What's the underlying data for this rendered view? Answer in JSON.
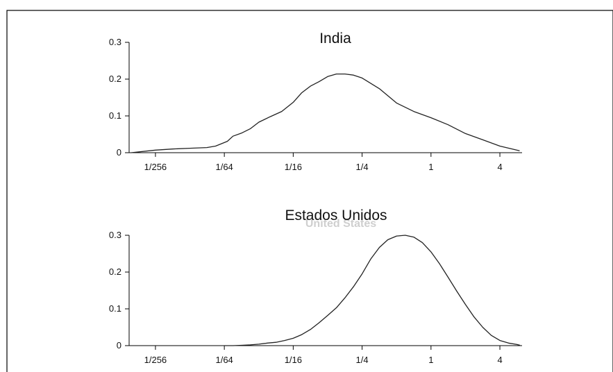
{
  "chart_data": [
    {
      "type": "line",
      "title": "India",
      "xscale": "log2",
      "x_ticks": [
        {
          "value": 0.00390625,
          "label": "1/256"
        },
        {
          "value": 0.015625,
          "label": "1/64"
        },
        {
          "value": 0.0625,
          "label": "1/16"
        },
        {
          "value": 0.25,
          "label": "1/4"
        },
        {
          "value": 1,
          "label": "1"
        },
        {
          "value": 4,
          "label": "4"
        }
      ],
      "y_ticks": [
        {
          "value": 0,
          "label": "0"
        },
        {
          "value": 0.1,
          "label": "0.1"
        },
        {
          "value": 0.2,
          "label": "0.2"
        },
        {
          "value": 0.3,
          "label": "0.3"
        }
      ],
      "xlim": [
        0.0023,
        6.25
      ],
      "ylim": [
        0,
        0.3
      ],
      "grid": false,
      "series": [
        {
          "x": [
            0.0024,
            0.0039,
            0.0055,
            0.0078,
            0.011,
            0.0131,
            0.0166,
            0.0186,
            0.022,
            0.0263,
            0.0313,
            0.0394,
            0.0496,
            0.0625,
            0.0743,
            0.0884,
            0.105,
            0.125,
            0.149,
            0.177,
            0.21,
            0.25,
            0.354,
            0.5,
            0.707,
            1,
            1.41,
            2,
            2.83,
            4,
            5.95
          ],
          "y": [
            0,
            0.007,
            0.01,
            0.012,
            0.014,
            0.018,
            0.031,
            0.045,
            0.053,
            0.065,
            0.083,
            0.098,
            0.112,
            0.137,
            0.163,
            0.181,
            0.193,
            0.207,
            0.214,
            0.214,
            0.211,
            0.203,
            0.174,
            0.135,
            0.112,
            0.095,
            0.076,
            0.052,
            0.035,
            0.018,
            0.005
          ]
        }
      ]
    },
    {
      "type": "line",
      "title": "Estados Unidos",
      "overlapped_text": "United States",
      "xscale": "log2",
      "x_ticks": [
        {
          "value": 0.00390625,
          "label": "1/256"
        },
        {
          "value": 0.015625,
          "label": "1/64"
        },
        {
          "value": 0.0625,
          "label": "1/16"
        },
        {
          "value": 0.25,
          "label": "1/4"
        },
        {
          "value": 1,
          "label": "1"
        },
        {
          "value": 4,
          "label": "4"
        }
      ],
      "y_ticks": [
        {
          "value": 0,
          "label": "0"
        },
        {
          "value": 0.1,
          "label": "0.1"
        },
        {
          "value": 0.2,
          "label": "0.2"
        },
        {
          "value": 0.3,
          "label": "0.3"
        }
      ],
      "xlim": [
        0.0023,
        6.25
      ],
      "ylim": [
        0,
        0.3
      ],
      "grid": false,
      "series": [
        {
          "x": [
            0.0156,
            0.0186,
            0.0221,
            0.0263,
            0.0313,
            0.0372,
            0.0442,
            0.0526,
            0.0625,
            0.0743,
            0.0884,
            0.105,
            0.125,
            0.149,
            0.177,
            0.21,
            0.25,
            0.297,
            0.354,
            0.42,
            0.5,
            0.595,
            0.707,
            0.841,
            1,
            1.19,
            1.41,
            1.68,
            2,
            2.38,
            2.83,
            3.36,
            4,
            4.76,
            5.66,
            6.0
          ],
          "y": [
            0,
            0,
            0.001,
            0.002,
            0.004,
            0.007,
            0.009,
            0.014,
            0.02,
            0.03,
            0.044,
            0.062,
            0.082,
            0.103,
            0.13,
            0.16,
            0.195,
            0.235,
            0.267,
            0.288,
            0.298,
            0.3,
            0.295,
            0.28,
            0.255,
            0.222,
            0.186,
            0.148,
            0.112,
            0.078,
            0.05,
            0.028,
            0.014,
            0.007,
            0.003,
            0.001
          ]
        }
      ]
    }
  ]
}
